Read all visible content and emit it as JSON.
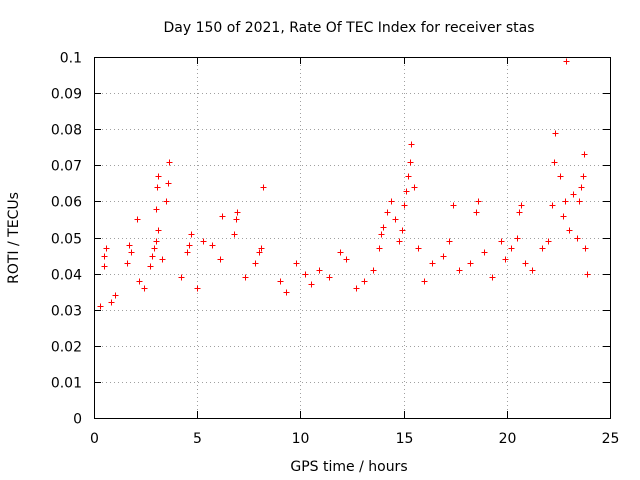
{
  "chart_data": {
    "type": "scatter",
    "title": "Day 150 of 2021, Rate Of TEC Index for receiver stas",
    "xlabel": "GPS time / hours",
    "ylabel": "ROTI / TECUs",
    "xlim": [
      0,
      25
    ],
    "ylim": [
      0,
      0.1
    ],
    "x_ticks": [
      "0",
      "5",
      "10",
      "15",
      "20",
      "25"
    ],
    "y_ticks": [
      "0",
      "0.01",
      "0.02",
      "0.03",
      "0.04",
      "0.05",
      "0.06",
      "0.07",
      "0.08",
      "0.09",
      "0.1"
    ],
    "grid": true,
    "marker": "plus",
    "series": [
      {
        "name": "stas",
        "color": "#ff0000",
        "points": [
          [
            0.3,
            0.031
          ],
          [
            0.5,
            0.042
          ],
          [
            0.5,
            0.045
          ],
          [
            0.6,
            0.047
          ],
          [
            0.8,
            0.032
          ],
          [
            1.0,
            0.034
          ],
          [
            1.6,
            0.043
          ],
          [
            1.7,
            0.048
          ],
          [
            1.8,
            0.046
          ],
          [
            2.1,
            0.055
          ],
          [
            2.2,
            0.038
          ],
          [
            2.4,
            0.036
          ],
          [
            2.7,
            0.042
          ],
          [
            2.8,
            0.045
          ],
          [
            2.9,
            0.047
          ],
          [
            3.0,
            0.049
          ],
          [
            3.1,
            0.052
          ],
          [
            3.0,
            0.058
          ],
          [
            3.05,
            0.064
          ],
          [
            3.1,
            0.067
          ],
          [
            3.3,
            0.044
          ],
          [
            3.5,
            0.06
          ],
          [
            3.6,
            0.065
          ],
          [
            3.65,
            0.071
          ],
          [
            4.2,
            0.039
          ],
          [
            4.5,
            0.046
          ],
          [
            4.6,
            0.048
          ],
          [
            4.7,
            0.051
          ],
          [
            5.0,
            0.036
          ],
          [
            5.3,
            0.049
          ],
          [
            5.7,
            0.048
          ],
          [
            6.1,
            0.044
          ],
          [
            6.2,
            0.056
          ],
          [
            6.8,
            0.051
          ],
          [
            6.9,
            0.055
          ],
          [
            6.95,
            0.057
          ],
          [
            7.3,
            0.039
          ],
          [
            7.8,
            0.043
          ],
          [
            8.0,
            0.046
          ],
          [
            8.1,
            0.047
          ],
          [
            8.2,
            0.064
          ],
          [
            9.0,
            0.038
          ],
          [
            9.3,
            0.035
          ],
          [
            9.8,
            0.043
          ],
          [
            10.2,
            0.04
          ],
          [
            10.5,
            0.037
          ],
          [
            10.9,
            0.041
          ],
          [
            11.4,
            0.039
          ],
          [
            11.9,
            0.046
          ],
          [
            12.2,
            0.044
          ],
          [
            12.7,
            0.036
          ],
          [
            13.1,
            0.038
          ],
          [
            13.5,
            0.041
          ],
          [
            13.8,
            0.047
          ],
          [
            13.9,
            0.051
          ],
          [
            14.0,
            0.053
          ],
          [
            14.2,
            0.057
          ],
          [
            14.4,
            0.06
          ],
          [
            14.6,
            0.055
          ],
          [
            14.8,
            0.049
          ],
          [
            14.9,
            0.052
          ],
          [
            15.0,
            0.059
          ],
          [
            15.1,
            0.063
          ],
          [
            15.2,
            0.067
          ],
          [
            15.3,
            0.071
          ],
          [
            15.35,
            0.076
          ],
          [
            15.5,
            0.064
          ],
          [
            15.7,
            0.047
          ],
          [
            16.0,
            0.038
          ],
          [
            16.4,
            0.043
          ],
          [
            16.9,
            0.045
          ],
          [
            17.2,
            0.049
          ],
          [
            17.4,
            0.059
          ],
          [
            17.7,
            0.041
          ],
          [
            18.2,
            0.043
          ],
          [
            18.5,
            0.057
          ],
          [
            18.6,
            0.06
          ],
          [
            18.9,
            0.046
          ],
          [
            19.3,
            0.039
          ],
          [
            19.7,
            0.049
          ],
          [
            19.9,
            0.044
          ],
          [
            20.2,
            0.047
          ],
          [
            20.5,
            0.05
          ],
          [
            20.6,
            0.057
          ],
          [
            20.7,
            0.059
          ],
          [
            20.9,
            0.043
          ],
          [
            21.2,
            0.041
          ],
          [
            21.7,
            0.047
          ],
          [
            22.0,
            0.049
          ],
          [
            22.2,
            0.059
          ],
          [
            22.3,
            0.071
          ],
          [
            22.35,
            0.079
          ],
          [
            22.6,
            0.067
          ],
          [
            22.7,
            0.056
          ],
          [
            22.8,
            0.06
          ],
          [
            23.0,
            0.052
          ],
          [
            23.2,
            0.062
          ],
          [
            23.4,
            0.05
          ],
          [
            23.5,
            0.06
          ],
          [
            23.6,
            0.064
          ],
          [
            23.7,
            0.067
          ],
          [
            23.75,
            0.073
          ],
          [
            23.8,
            0.047
          ],
          [
            23.9,
            0.04
          ],
          [
            22.85,
            0.099
          ]
        ]
      }
    ]
  }
}
